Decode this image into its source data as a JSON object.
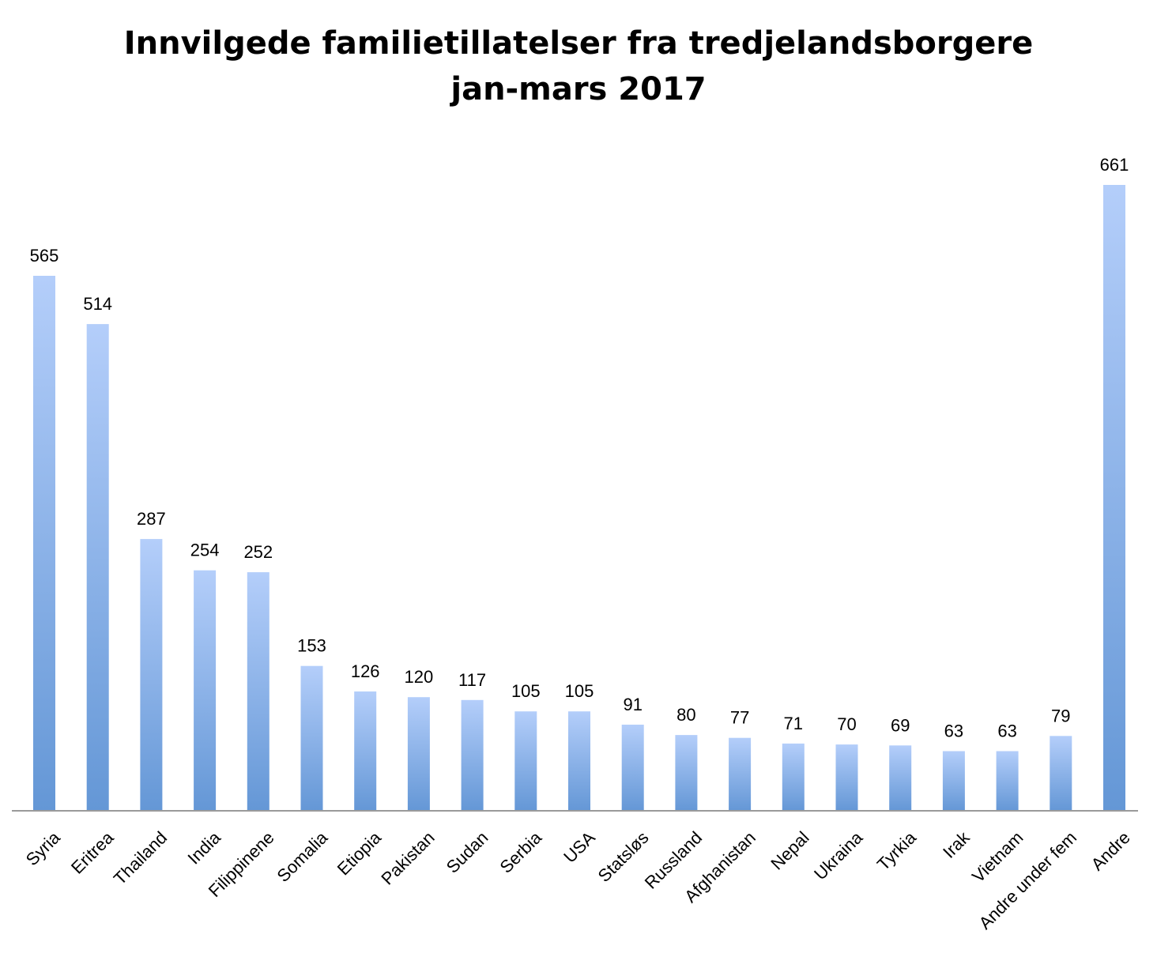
{
  "chart_data": {
    "type": "bar",
    "title": "Innvilgede familietillatelser fra tredjelandsborgere jan-mars 2017",
    "title_lines": [
      "Innvilgede familietillatelser fra tredjelandsborgere",
      "jan-mars 2017"
    ],
    "xlabel": "",
    "ylabel": "",
    "categories": [
      "Syria",
      "Eritrea",
      "Thailand",
      "India",
      "Filippinene",
      "Somalia",
      "Etiopia",
      "Pakistan",
      "Sudan",
      "Serbia",
      "USA",
      "Statsløs",
      "Russland",
      "Afghanistan",
      "Nepal",
      "Ukraina",
      "Tyrkia",
      "Irak",
      "Vietnam",
      "Andre under fem",
      "Andre"
    ],
    "values": [
      565,
      514,
      287,
      254,
      252,
      153,
      126,
      120,
      117,
      105,
      105,
      91,
      80,
      77,
      71,
      70,
      69,
      63,
      63,
      79,
      661
    ],
    "ylim": [
      0,
      661
    ],
    "grid": false,
    "legend": "none",
    "data_labels": true,
    "colors": {
      "bar_top": "#b4cefa",
      "bar_bottom": "#6497d6",
      "axis": "#9a9a9a"
    }
  }
}
